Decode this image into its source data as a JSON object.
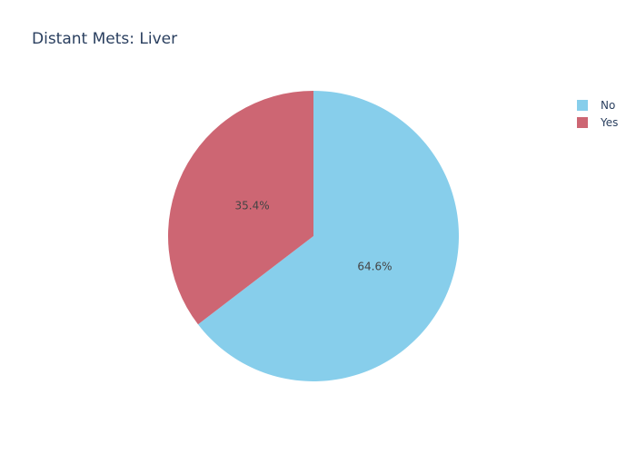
{
  "chart_data": {
    "type": "pie",
    "title": "Distant Mets: Liver",
    "labels": [
      "No",
      "Yes"
    ],
    "values": [
      64.6,
      35.4
    ],
    "value_labels": [
      "64.6%",
      "35.4%"
    ],
    "colors": [
      "#87CEEB",
      "#CD6673"
    ],
    "legend_position": "top-right"
  }
}
